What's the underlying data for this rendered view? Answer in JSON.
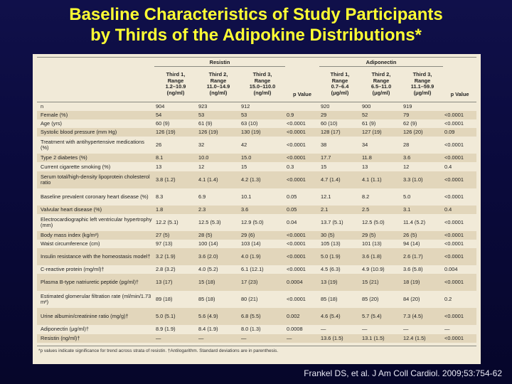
{
  "title": {
    "line1": "Baseline Characteristics of Study Participants",
    "line2": "by Thirds of the Adipokine Distributions*"
  },
  "table": {
    "groups": {
      "resistin": "Resistin",
      "adiponectin": "Adiponectin"
    },
    "headers": [
      {
        "l1": "",
        "l2": "",
        "l3": "",
        "l4": ""
      },
      {
        "l1": "Third 1,",
        "l2": "Range",
        "l3": "1.2–10.9",
        "l4": "(ng/ml)"
      },
      {
        "l1": "Third 2,",
        "l2": "Range",
        "l3": "11.0–14.9",
        "l4": "(ng/ml)"
      },
      {
        "l1": "Third 3,",
        "l2": "Range",
        "l3": "15.0–110.0",
        "l4": "(ng/ml)"
      },
      {
        "l1": "p Value",
        "l2": "",
        "l3": "",
        "l4": ""
      },
      {
        "l1": "Third 1,",
        "l2": "Range",
        "l3": "0.7–6.4",
        "l4": "(μg/ml)"
      },
      {
        "l1": "Third 2,",
        "l2": "Range",
        "l3": "6.5–11.0",
        "l4": "(μg/ml)"
      },
      {
        "l1": "Third 3,",
        "l2": "Range",
        "l3": "11.1–59.9",
        "l4": "(μg/ml)"
      },
      {
        "l1": "p Value",
        "l2": "",
        "l3": "",
        "l4": ""
      }
    ],
    "rows": [
      {
        "label": "n",
        "cells": [
          "904",
          "923",
          "912",
          "",
          "920",
          "900",
          "919",
          ""
        ]
      },
      {
        "label": "Female (%)",
        "cells": [
          "54",
          "53",
          "53",
          "0.9",
          "29",
          "52",
          "79",
          "<0.0001"
        ]
      },
      {
        "label": "Age (yrs)",
        "cells": [
          "60 (9)",
          "61 (9)",
          "63 (10)",
          "<0.0001",
          "60 (10)",
          "61 (9)",
          "62 (9)",
          "<0.0001"
        ]
      },
      {
        "label": "Systolic blood pressure (mm Hg)",
        "cells": [
          "126 (19)",
          "126 (19)",
          "130 (19)",
          "<0.0001",
          "128 (17)",
          "127 (19)",
          "126 (20)",
          "0.09"
        ]
      },
      {
        "label": "Treatment with antihypertensive medications (%)",
        "cells": [
          "26",
          "32",
          "42",
          "<0.0001",
          "38",
          "34",
          "28",
          "<0.0001"
        ]
      },
      {
        "label": "Type 2 diabetes (%)",
        "cells": [
          "8.1",
          "10.0",
          "15.0",
          "<0.0001",
          "17.7",
          "11.8",
          "3.6",
          "<0.0001"
        ]
      },
      {
        "label": "Current cigarette smoking (%)",
        "cells": [
          "13",
          "12",
          "15",
          "0.3",
          "15",
          "13",
          "12",
          "0.4"
        ]
      },
      {
        "label": "Serum total/high-density lipoprotein cholesterol ratio",
        "cells": [
          "3.8 (1.2)",
          "4.1 (1.4)",
          "4.2 (1.3)",
          "<0.0001",
          "4.7 (1.4)",
          "4.1 (1.1)",
          "3.3 (1.0)",
          "<0.0001"
        ]
      },
      {
        "label": "Baseline prevalent coronary heart disease (%)",
        "cells": [
          "8.3",
          "6.9",
          "10.1",
          "0.05",
          "12.1",
          "8.2",
          "5.0",
          "<0.0001"
        ]
      },
      {
        "label": "Valvular heart disease (%)",
        "cells": [
          "1.8",
          "2.3",
          "3.6",
          "0.05",
          "2.1",
          "2.5",
          "3.1",
          "0.4"
        ]
      },
      {
        "label": "Electrocardiographic left ventricular hypertrophy (mm)",
        "cells": [
          "12.2 (5.1)",
          "12.5 (5.3)",
          "12.9 (5.0)",
          "0.04",
          "13.7 (5.1)",
          "12.5 (5.0)",
          "11.4 (5.2)",
          "<0.0001"
        ]
      },
      {
        "label": "Body mass index (kg/m²)",
        "cells": [
          "27 (5)",
          "28 (5)",
          "29 (6)",
          "<0.0001",
          "30 (5)",
          "29 (5)",
          "26 (5)",
          "<0.0001"
        ]
      },
      {
        "label": "Waist circumference (cm)",
        "cells": [
          "97 (13)",
          "100 (14)",
          "103 (14)",
          "<0.0001",
          "105 (13)",
          "101 (13)",
          "94 (14)",
          "<0.0001"
        ]
      },
      {
        "label": "Insulin resistance with the homeostasis model†",
        "cells": [
          "3.2 (1.9)",
          "3.6 (2.0)",
          "4.0 (1.9)",
          "<0.0001",
          "5.0 (1.9)",
          "3.6 (1.8)",
          "2.6 (1.7)",
          "<0.0001"
        ]
      },
      {
        "label": "C-reactive protein (mg/ml)†",
        "cells": [
          "2.8 (3.2)",
          "4.0 (5.2)",
          "6.1 (12.1)",
          "<0.0001",
          "4.5 (6.3)",
          "4.9 (10.9)",
          "3.6 (5.8)",
          "0.004"
        ]
      },
      {
        "label": "Plasma B-type natriuretic peptide (pg/ml)†",
        "cells": [
          "13 (17)",
          "15 (18)",
          "17 (23)",
          "0.0004",
          "13 (19)",
          "15 (21)",
          "18 (19)",
          "<0.0001"
        ]
      },
      {
        "label": "Estimated glomerular filtration rate (ml/min/1.73 m²)",
        "cells": [
          "89 (18)",
          "85 (18)",
          "80 (21)",
          "<0.0001",
          "85 (18)",
          "85 (20)",
          "84 (20)",
          "0.2"
        ]
      },
      {
        "label": "Urine albumin/creatinine ratio (mg/g)†",
        "cells": [
          "5.0 (5.1)",
          "5.6 (4.9)",
          "6.8 (5.5)",
          "0.002",
          "4.6 (5.4)",
          "5.7 (5.4)",
          "7.3 (4.5)",
          "<0.0001"
        ]
      },
      {
        "label": "Adiponectin (μg/ml)†",
        "cells": [
          "8.9 (1.9)",
          "8.4 (1.9)",
          "8.0 (1.3)",
          "0.0008",
          "—",
          "—",
          "—",
          "—"
        ]
      },
      {
        "label": "Resistin (ng/ml)†",
        "cells": [
          "—",
          "—",
          "—",
          "—",
          "13.6 (1.5)",
          "13.1 (1.5)",
          "12.4 (1.5)",
          "<0.0001"
        ]
      }
    ],
    "footnote": "*p values indicate significance for trend across strata of resistin. †Antilogarithm. Standard deviations are in parenthesis."
  },
  "citation": "Frankel DS, et al. J Am Coll Cardiol. 2009;53:754-62"
}
